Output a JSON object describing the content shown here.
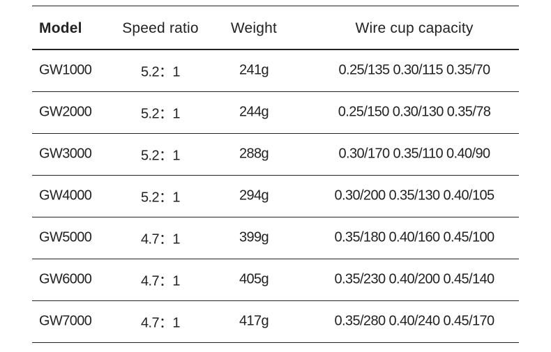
{
  "header": {
    "columns": [
      "Model",
      "Speed ratio",
      "Weight",
      "Wire cup capacity"
    ]
  },
  "table": {
    "rows": [
      [
        "GW1000",
        "5.2：1",
        "241g",
        "0.25/135 0.30/115 0.35/70"
      ],
      [
        "GW2000",
        "5.2：1",
        "244g",
        "0.25/150 0.30/130 0.35/78"
      ],
      [
        "GW3000",
        "5.2：1",
        "288g",
        "0.30/170 0.35/110 0.40/90"
      ],
      [
        "GW4000",
        "5.2：1",
        "294g",
        "0.30/200 0.35/130 0.40/105"
      ],
      [
        "GW5000",
        "4.7：1",
        "399g",
        "0.35/180 0.40/160 0.45/100"
      ],
      [
        "GW6000",
        "4.7：1",
        "405g",
        "0.35/230 0.40/200 0.45/140"
      ],
      [
        "GW7000",
        "4.7：1",
        "417g",
        "0.35/280 0.40/240 0.45/170"
      ]
    ]
  }
}
